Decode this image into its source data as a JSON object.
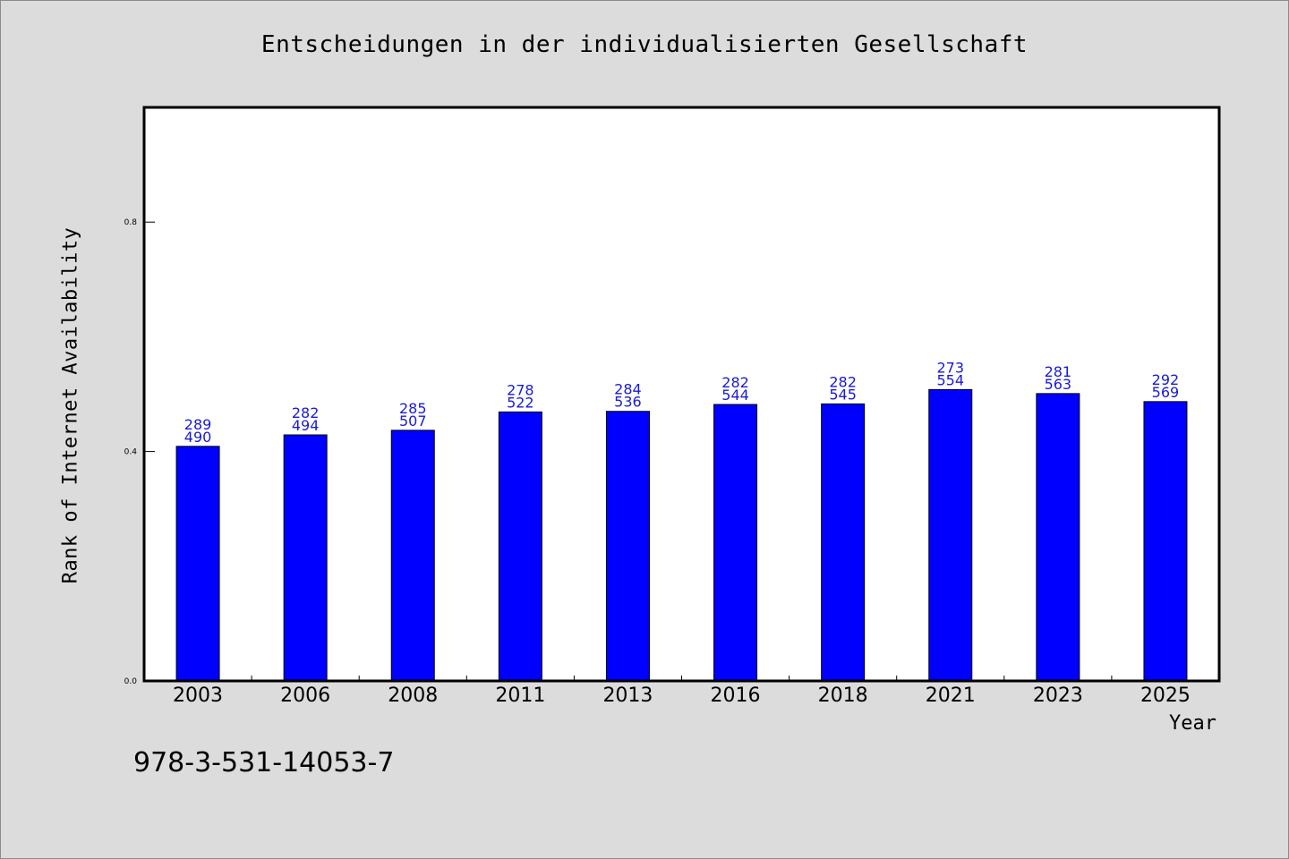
{
  "chart_data": {
    "type": "bar",
    "title": "Entscheidungen in der individualisierten Gesellschaft",
    "xlabel": "Year",
    "ylabel": "Rank of Internet Availability",
    "ylim": [
      0,
      1.0
    ],
    "yticks": [
      0.0,
      0.4,
      0.8
    ],
    "ytick_labels": [
      "0.0",
      "0.4",
      "0.8"
    ],
    "grid": false,
    "categories": [
      "2003",
      "2006",
      "2008",
      "2011",
      "2013",
      "2016",
      "2018",
      "2021",
      "2023",
      "2025"
    ],
    "values": [
      0.409,
      0.429,
      0.437,
      0.469,
      0.47,
      0.482,
      0.483,
      0.508,
      0.501,
      0.487
    ],
    "labels_top": [
      "289",
      "282",
      "285",
      "278",
      "284",
      "282",
      "282",
      "273",
      "281",
      "292"
    ],
    "labels_bottom": [
      "490",
      "494",
      "507",
      "522",
      "536",
      "544",
      "545",
      "554",
      "563",
      "569"
    ],
    "colors": {
      "bar": "#0000ff",
      "bar_label": "#1a1ad6",
      "background": "#dcdcdc",
      "plot_bg": "#ffffff"
    }
  },
  "footer": {
    "id": "978-3-531-14053-7"
  }
}
